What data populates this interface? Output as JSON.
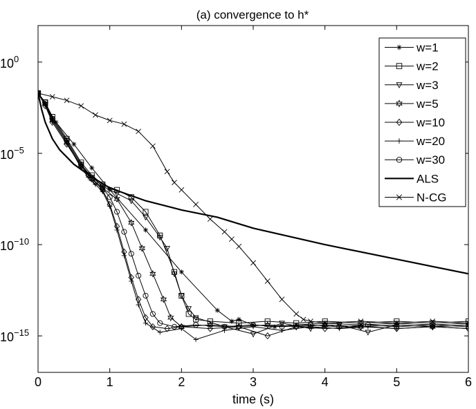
{
  "chart_data": {
    "type": "line",
    "title": "(a) convergence to h*",
    "xlabel": "time (s)",
    "ylabel": "",
    "xlim": [
      0,
      6
    ],
    "ylim_log10": [
      -17,
      2
    ],
    "yscale": "log",
    "grid": false,
    "legend_position": "top-right",
    "x_ticks": [
      {
        "value": 0,
        "label": "0"
      },
      {
        "value": 1,
        "label": "1"
      },
      {
        "value": 2,
        "label": "2"
      },
      {
        "value": 3,
        "label": "3"
      },
      {
        "value": 4,
        "label": "4"
      },
      {
        "value": 5,
        "label": "5"
      },
      {
        "value": 6,
        "label": "6"
      }
    ],
    "y_ticks": [
      {
        "exp": 0,
        "base": "10",
        "sup": "0"
      },
      {
        "exp": -5,
        "base": "10",
        "sup": "−5"
      },
      {
        "exp": -10,
        "base": "10",
        "sup": "−10"
      },
      {
        "exp": -15,
        "base": "10",
        "sup": "−15"
      }
    ],
    "series": [
      {
        "name": "w=1",
        "marker": "star",
        "x": [
          0,
          0.1,
          0.25,
          0.5,
          0.75,
          1,
          1.5,
          2,
          2.5,
          2.7,
          2.8,
          3,
          3.3,
          3.6,
          4,
          4.5,
          5,
          5.5,
          6
        ],
        "log10y": [
          -1.7,
          -2.3,
          -3.3,
          -4.5,
          -5.8,
          -7.0,
          -9.2,
          -11.5,
          -13.6,
          -14.2,
          -14.1,
          -14.4,
          -14.5,
          -14.4,
          -14.3,
          -14.4,
          -14.3,
          -14.4,
          -14.3
        ]
      },
      {
        "name": "w=2",
        "marker": "square",
        "x": [
          0,
          0.1,
          0.2,
          0.4,
          0.6,
          0.75,
          0.9,
          1.1,
          1.3,
          1.5,
          1.7,
          1.9,
          2.0,
          2.1,
          2.2,
          2.4,
          2.8,
          3.2,
          3.6,
          4,
          4.5,
          5,
          5.5,
          6
        ],
        "log10y": [
          -1.7,
          -2.2,
          -3.0,
          -4.2,
          -5.5,
          -6.2,
          -6.7,
          -7.0,
          -7.4,
          -8.2,
          -9.5,
          -11.5,
          -12.8,
          -13.8,
          -14.1,
          -14.2,
          -14.3,
          -14.2,
          -14.3,
          -14.2,
          -14.3,
          -14.2,
          -14.3,
          -14.2
        ]
      },
      {
        "name": "w=3",
        "marker": "triangle-down",
        "x": [
          0,
          0.1,
          0.2,
          0.4,
          0.6,
          0.75,
          0.9,
          1.1,
          1.3,
          1.5,
          1.7,
          1.8,
          1.9,
          2.0,
          2.1,
          2.2,
          2.6,
          3.0,
          3.4,
          3.8,
          4.2,
          4.6,
          5,
          5.5,
          6
        ],
        "log10y": [
          -1.7,
          -2.3,
          -3.1,
          -4.3,
          -5.6,
          -6.3,
          -6.8,
          -7.2,
          -7.6,
          -8.5,
          -9.6,
          -10.2,
          -11.6,
          -12.8,
          -13.5,
          -14.0,
          -14.5,
          -14.9,
          -14.3,
          -14.6,
          -14.4,
          -14.8,
          -14.4,
          -14.5,
          -14.4
        ]
      },
      {
        "name": "w=5",
        "marker": "hexagram",
        "x": [
          0,
          0.1,
          0.2,
          0.4,
          0.6,
          0.75,
          0.9,
          1.1,
          1.3,
          1.45,
          1.6,
          1.75,
          1.85,
          2.0,
          2.4,
          2.8,
          3.2,
          3.6,
          4,
          4.5,
          5,
          5.5,
          6
        ],
        "log10y": [
          -1.7,
          -2.3,
          -3.2,
          -4.4,
          -5.7,
          -6.4,
          -6.9,
          -7.5,
          -8.8,
          -10.2,
          -11.6,
          -13.0,
          -14.0,
          -14.5,
          -14.4,
          -14.5,
          -14.4,
          -14.5,
          -14.4,
          -14.5,
          -14.4,
          -14.5,
          -14.4
        ]
      },
      {
        "name": "w=10",
        "marker": "diamond",
        "x": [
          0,
          0.1,
          0.2,
          0.4,
          0.6,
          0.7,
          0.8,
          0.9,
          1.0,
          1.1,
          1.2,
          1.3,
          1.4,
          1.5,
          1.6,
          1.8,
          2.0,
          2.4,
          2.8,
          3.2,
          3.6,
          4,
          4.5,
          5,
          5.5,
          6
        ],
        "log10y": [
          -1.7,
          -2.4,
          -3.3,
          -4.5,
          -5.7,
          -6.2,
          -6.6,
          -7.0,
          -7.8,
          -9.0,
          -10.4,
          -11.8,
          -13.0,
          -14.0,
          -14.5,
          -14.6,
          -14.5,
          -14.6,
          -14.5,
          -15.0,
          -14.5,
          -14.6,
          -14.5,
          -14.6,
          -14.5,
          -14.6
        ]
      },
      {
        "name": "w=20",
        "marker": "plus",
        "x": [
          0,
          0.1,
          0.2,
          0.4,
          0.6,
          0.7,
          0.8,
          0.9,
          1.0,
          1.1,
          1.2,
          1.3,
          1.4,
          1.5,
          1.7,
          2.0,
          2.2,
          2.6,
          3.0,
          3.4,
          3.8,
          4.2,
          4.6,
          5,
          5.5,
          6
        ],
        "log10y": [
          -1.7,
          -2.3,
          -3.2,
          -4.4,
          -5.8,
          -6.3,
          -6.7,
          -7.1,
          -7.9,
          -9.2,
          -10.6,
          -12.0,
          -13.3,
          -14.3,
          -14.8,
          -14.6,
          -15.2,
          -14.7,
          -14.5,
          -14.7,
          -14.5,
          -14.6,
          -14.5,
          -14.6,
          -14.5,
          -14.6
        ]
      },
      {
        "name": "w=30",
        "marker": "circle",
        "x": [
          0,
          0.1,
          0.2,
          0.4,
          0.6,
          0.75,
          0.9,
          1.0,
          1.1,
          1.2,
          1.3,
          1.4,
          1.5,
          1.6,
          1.7,
          1.9,
          2.2,
          2.6,
          3.0,
          3.4,
          3.8,
          4.2,
          4.6,
          5,
          5.5,
          6
        ],
        "log10y": [
          -1.7,
          -2.2,
          -3.1,
          -4.3,
          -5.6,
          -6.4,
          -6.9,
          -7.4,
          -8.2,
          -9.3,
          -10.5,
          -11.7,
          -12.8,
          -13.8,
          -14.3,
          -14.5,
          -14.4,
          -14.5,
          -14.4,
          -14.5,
          -14.4,
          -14.5,
          -14.4,
          -14.5,
          -14.4,
          -14.5
        ]
      },
      {
        "name": "ALS",
        "marker": "none",
        "x": [
          0,
          0.05,
          0.1,
          0.2,
          0.3,
          0.5,
          0.75,
          1.0,
          1.5,
          2.0,
          2.5,
          3.0,
          4.0,
          5.0,
          6.0
        ],
        "log10y": [
          -1.7,
          -2.6,
          -3.3,
          -4.2,
          -4.8,
          -5.6,
          -6.3,
          -6.9,
          -7.6,
          -8.1,
          -8.5,
          -9.1,
          -10.0,
          -10.8,
          -11.6
        ]
      },
      {
        "name": "N-CG",
        "marker": "x",
        "x": [
          0,
          0.2,
          0.4,
          0.6,
          0.8,
          1.0,
          1.2,
          1.4,
          1.6,
          1.8,
          1.9,
          2.0,
          2.2,
          2.4,
          2.6,
          2.7,
          2.8,
          3.0,
          3.2,
          3.4,
          3.6,
          3.7,
          3.8,
          4.0,
          4.5,
          5,
          5.5,
          6
        ],
        "log10y": [
          -1.7,
          -1.9,
          -2.1,
          -2.4,
          -2.9,
          -3.2,
          -3.4,
          -3.8,
          -4.6,
          -6.0,
          -6.6,
          -7.0,
          -7.8,
          -8.6,
          -9.3,
          -9.7,
          -10.1,
          -11.0,
          -12.0,
          -13.0,
          -13.8,
          -14.1,
          -14.2,
          -14.3,
          -14.2,
          -14.3,
          -14.2,
          -14.3
        ]
      }
    ]
  }
}
